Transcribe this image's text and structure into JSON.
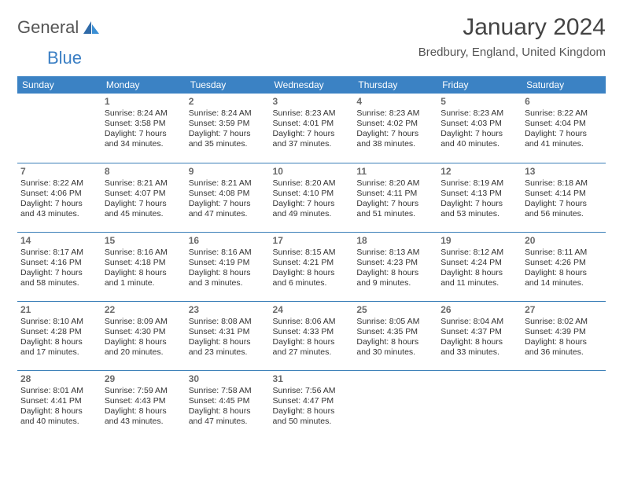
{
  "brand": {
    "word1": "General",
    "word2": "Blue"
  },
  "title": "January 2024",
  "location": "Bredbury, England, United Kingdom",
  "colors": {
    "header_bg": "#3b82c4",
    "header_text": "#ffffff",
    "cell_border": "#3b7fb8",
    "text": "#333333",
    "daynum": "#6a6a6a",
    "brand_gray": "#555555",
    "brand_blue": "#3b7fc4"
  },
  "weekdays": [
    "Sunday",
    "Monday",
    "Tuesday",
    "Wednesday",
    "Thursday",
    "Friday",
    "Saturday"
  ],
  "weeks": [
    [
      null,
      {
        "n": "1",
        "sr": "8:24 AM",
        "ss": "3:58 PM",
        "dl": "7 hours and 34 minutes."
      },
      {
        "n": "2",
        "sr": "8:24 AM",
        "ss": "3:59 PM",
        "dl": "7 hours and 35 minutes."
      },
      {
        "n": "3",
        "sr": "8:23 AM",
        "ss": "4:01 PM",
        "dl": "7 hours and 37 minutes."
      },
      {
        "n": "4",
        "sr": "8:23 AM",
        "ss": "4:02 PM",
        "dl": "7 hours and 38 minutes."
      },
      {
        "n": "5",
        "sr": "8:23 AM",
        "ss": "4:03 PM",
        "dl": "7 hours and 40 minutes."
      },
      {
        "n": "6",
        "sr": "8:22 AM",
        "ss": "4:04 PM",
        "dl": "7 hours and 41 minutes."
      }
    ],
    [
      {
        "n": "7",
        "sr": "8:22 AM",
        "ss": "4:06 PM",
        "dl": "7 hours and 43 minutes."
      },
      {
        "n": "8",
        "sr": "8:21 AM",
        "ss": "4:07 PM",
        "dl": "7 hours and 45 minutes."
      },
      {
        "n": "9",
        "sr": "8:21 AM",
        "ss": "4:08 PM",
        "dl": "7 hours and 47 minutes."
      },
      {
        "n": "10",
        "sr": "8:20 AM",
        "ss": "4:10 PM",
        "dl": "7 hours and 49 minutes."
      },
      {
        "n": "11",
        "sr": "8:20 AM",
        "ss": "4:11 PM",
        "dl": "7 hours and 51 minutes."
      },
      {
        "n": "12",
        "sr": "8:19 AM",
        "ss": "4:13 PM",
        "dl": "7 hours and 53 minutes."
      },
      {
        "n": "13",
        "sr": "8:18 AM",
        "ss": "4:14 PM",
        "dl": "7 hours and 56 minutes."
      }
    ],
    [
      {
        "n": "14",
        "sr": "8:17 AM",
        "ss": "4:16 PM",
        "dl": "7 hours and 58 minutes."
      },
      {
        "n": "15",
        "sr": "8:16 AM",
        "ss": "4:18 PM",
        "dl": "8 hours and 1 minute."
      },
      {
        "n": "16",
        "sr": "8:16 AM",
        "ss": "4:19 PM",
        "dl": "8 hours and 3 minutes."
      },
      {
        "n": "17",
        "sr": "8:15 AM",
        "ss": "4:21 PM",
        "dl": "8 hours and 6 minutes."
      },
      {
        "n": "18",
        "sr": "8:13 AM",
        "ss": "4:23 PM",
        "dl": "8 hours and 9 minutes."
      },
      {
        "n": "19",
        "sr": "8:12 AM",
        "ss": "4:24 PM",
        "dl": "8 hours and 11 minutes."
      },
      {
        "n": "20",
        "sr": "8:11 AM",
        "ss": "4:26 PM",
        "dl": "8 hours and 14 minutes."
      }
    ],
    [
      {
        "n": "21",
        "sr": "8:10 AM",
        "ss": "4:28 PM",
        "dl": "8 hours and 17 minutes."
      },
      {
        "n": "22",
        "sr": "8:09 AM",
        "ss": "4:30 PM",
        "dl": "8 hours and 20 minutes."
      },
      {
        "n": "23",
        "sr": "8:08 AM",
        "ss": "4:31 PM",
        "dl": "8 hours and 23 minutes."
      },
      {
        "n": "24",
        "sr": "8:06 AM",
        "ss": "4:33 PM",
        "dl": "8 hours and 27 minutes."
      },
      {
        "n": "25",
        "sr": "8:05 AM",
        "ss": "4:35 PM",
        "dl": "8 hours and 30 minutes."
      },
      {
        "n": "26",
        "sr": "8:04 AM",
        "ss": "4:37 PM",
        "dl": "8 hours and 33 minutes."
      },
      {
        "n": "27",
        "sr": "8:02 AM",
        "ss": "4:39 PM",
        "dl": "8 hours and 36 minutes."
      }
    ],
    [
      {
        "n": "28",
        "sr": "8:01 AM",
        "ss": "4:41 PM",
        "dl": "8 hours and 40 minutes."
      },
      {
        "n": "29",
        "sr": "7:59 AM",
        "ss": "4:43 PM",
        "dl": "8 hours and 43 minutes."
      },
      {
        "n": "30",
        "sr": "7:58 AM",
        "ss": "4:45 PM",
        "dl": "8 hours and 47 minutes."
      },
      {
        "n": "31",
        "sr": "7:56 AM",
        "ss": "4:47 PM",
        "dl": "8 hours and 50 minutes."
      },
      null,
      null,
      null
    ]
  ],
  "labels": {
    "sunrise": "Sunrise: ",
    "sunset": "Sunset: ",
    "daylight": "Daylight: "
  }
}
